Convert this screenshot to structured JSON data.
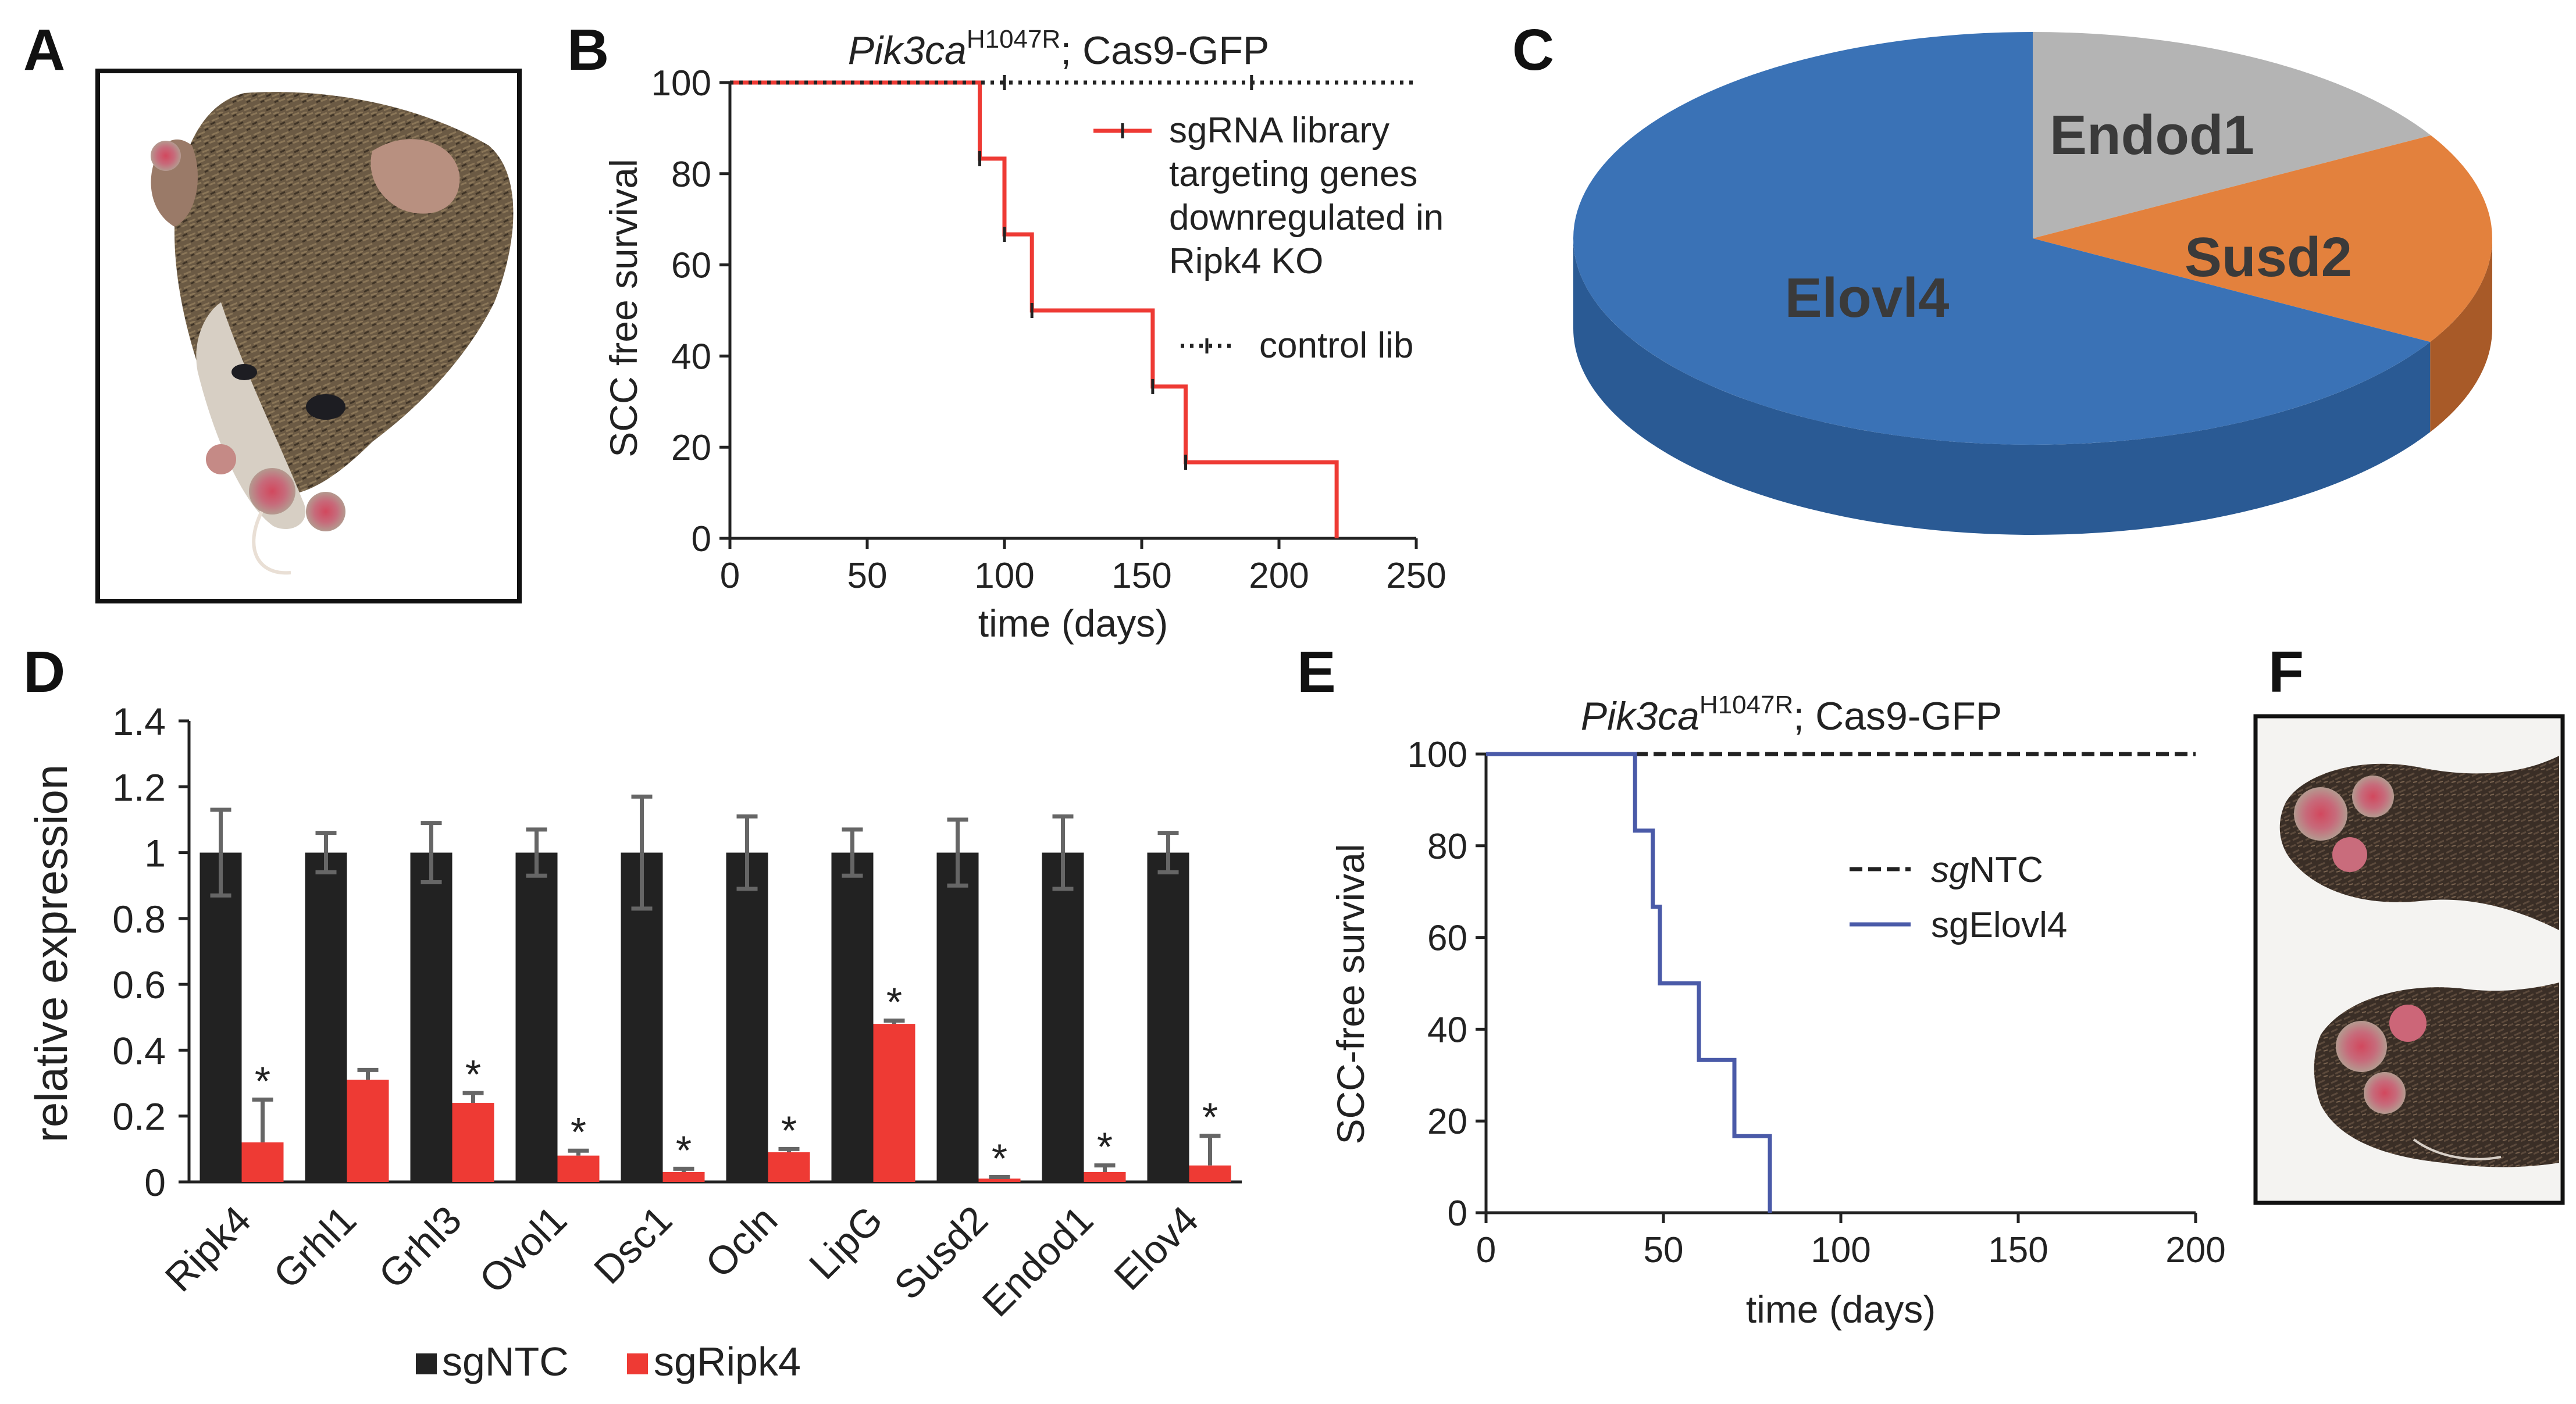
{
  "panel_letters": {
    "A": "A",
    "B": "B",
    "C": "C",
    "D": "D",
    "E": "E",
    "F": "F"
  },
  "colors": {
    "red": "#ee3a34",
    "black": "#222222",
    "blue": "#4a5aa8",
    "pie_blue": "#3a72b6",
    "pie_orange": "#e3813d",
    "pie_gray": "#b4b4b4"
  },
  "chart_data": [
    {
      "panel": "B",
      "type": "line",
      "title": {
        "gene": "Pik3ca",
        "sup": "H1047R",
        "rest": "; Cas9-GFP"
      },
      "xlabel": "time (days)",
      "ylabel": "SCC free survival",
      "xlim": [
        0,
        250
      ],
      "ylim": [
        0,
        100
      ],
      "xticks": [
        0,
        50,
        100,
        150,
        200,
        250
      ],
      "yticks": [
        0,
        20,
        40,
        60,
        80,
        100
      ],
      "series": [
        {
          "name": "sgRNA library targeting genes downregulated in Ripk4 KO",
          "legend_lines": [
            "sgRNA library",
            "targeting genes",
            "downregulated in",
            "Ripk4 KO"
          ],
          "style": "solid-red",
          "steps": [
            [
              0,
              100
            ],
            [
              91,
              100
            ],
            [
              91,
              83.3
            ],
            [
              100,
              83.3
            ],
            [
              100,
              66.7
            ],
            [
              110,
              66.7
            ],
            [
              110,
              50
            ],
            [
              154,
              50
            ],
            [
              154,
              33.3
            ],
            [
              166,
              33.3
            ],
            [
              166,
              16.7
            ],
            [
              221,
              16.7
            ],
            [
              221,
              0
            ]
          ],
          "censors": [
            [
              91,
              83.3
            ],
            [
              100,
              66.7
            ],
            [
              110,
              50
            ],
            [
              154,
              33.3
            ],
            [
              166,
              16.7
            ]
          ]
        },
        {
          "name": "control lib",
          "legend_lines": [
            "control lib"
          ],
          "style": "dotted-black",
          "steps": [
            [
              0,
              100
            ],
            [
              250,
              100
            ]
          ],
          "censors": [
            [
              100,
              100
            ],
            [
              190,
              100
            ]
          ]
        }
      ]
    },
    {
      "panel": "C",
      "type": "pie",
      "labels": [
        "Elovl4",
        "Susd2",
        "Endod1"
      ],
      "values": [
        66.7,
        16.7,
        16.7
      ]
    },
    {
      "panel": "D",
      "type": "bar",
      "ylabel": "relative expression",
      "ylim": [
        0,
        1.4
      ],
      "yticks": [
        "0",
        "0.2",
        "0.4",
        "0.6",
        "0.8",
        "1",
        "1.2",
        "1.4"
      ],
      "categories": [
        "Ripk4",
        "Grhl1",
        "Grhl3",
        "Ovol1",
        "Dsc1",
        "Ocln",
        "LipG",
        "Susd2",
        "Endod1",
        "Elov4"
      ],
      "series": [
        {
          "name": "sgNTC",
          "values": [
            1,
            1,
            1,
            1,
            1,
            1,
            1,
            1,
            1,
            1
          ],
          "errors": [
            0.13,
            0.06,
            0.09,
            0.07,
            0.17,
            0.11,
            0.07,
            0.1,
            0.11,
            0.06
          ]
        },
        {
          "name": "sgRipk4",
          "values": [
            0.12,
            0.31,
            0.24,
            0.08,
            0.03,
            0.09,
            0.48,
            0.01,
            0.03,
            0.05
          ],
          "errors": [
            0.13,
            0.03,
            0.03,
            0.015,
            0.01,
            0.01,
            0.01,
            0.005,
            0.02,
            0.09
          ]
        }
      ],
      "significant": [
        true,
        false,
        true,
        true,
        true,
        true,
        true,
        true,
        true,
        true
      ],
      "star_symbol": "*"
    },
    {
      "panel": "E",
      "type": "line",
      "title": {
        "gene": "Pik3ca",
        "sup": "H1047R",
        "rest": "; Cas9-GFP"
      },
      "xlabel": "time (days)",
      "ylabel": "SCC-free survival",
      "xlim": [
        0,
        200
      ],
      "ylim": [
        0,
        100
      ],
      "xticks": [
        0,
        50,
        100,
        150,
        200
      ],
      "yticks": [
        0,
        20,
        40,
        60,
        80,
        100
      ],
      "series": [
        {
          "name": "sgNTC",
          "legend_italic": "sg",
          "legend_rest": "NTC",
          "style": "dashed-black",
          "steps": [
            [
              0,
              100
            ],
            [
              200,
              100
            ]
          ],
          "censors": []
        },
        {
          "name": "sgElovl4",
          "legend_italic": "",
          "legend_rest": "sgElovl4",
          "style": "solid-blue",
          "steps": [
            [
              0,
              100
            ],
            [
              42,
              100
            ],
            [
              42,
              83.3
            ],
            [
              47,
              83.3
            ],
            [
              47,
              66.7
            ],
            [
              49,
              66.7
            ],
            [
              49,
              50
            ],
            [
              60,
              50
            ],
            [
              60,
              33.3
            ],
            [
              70,
              33.3
            ],
            [
              70,
              16.7
            ],
            [
              80,
              16.7
            ],
            [
              80,
              0
            ]
          ],
          "censors": []
        }
      ]
    }
  ]
}
